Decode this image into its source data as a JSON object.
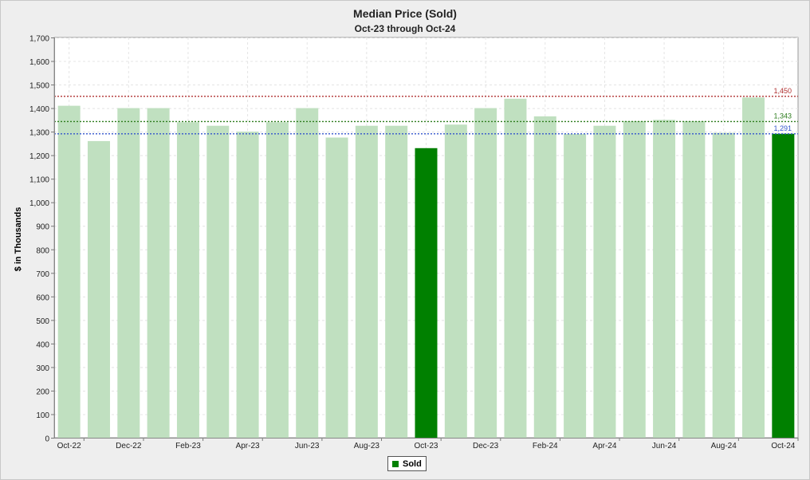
{
  "chart_data": {
    "type": "bar",
    "title": "Median Price (Sold)",
    "subtitle": "Oct-23 through Oct-24",
    "xlabel": "",
    "ylabel": "$ in Thousands",
    "ylim": [
      0,
      1700
    ],
    "y_ticks": [
      0,
      100,
      200,
      300,
      400,
      500,
      600,
      700,
      800,
      900,
      1000,
      1100,
      1200,
      1300,
      1400,
      1500,
      1600,
      1700
    ],
    "y_tick_labels": [
      "0",
      "100",
      "200",
      "300",
      "400",
      "500",
      "600",
      "700",
      "800",
      "900",
      "1,000",
      "1,100",
      "1,200",
      "1,300",
      "1,400",
      "1,500",
      "1,600",
      "1,700"
    ],
    "categories": [
      "Oct-22",
      "Nov-22",
      "Dec-22",
      "Jan-23",
      "Feb-23",
      "Mar-23",
      "Apr-23",
      "May-23",
      "Jun-23",
      "Jul-23",
      "Aug-23",
      "Sep-23",
      "Oct-23",
      "Nov-23",
      "Dec-23",
      "Jan-24",
      "Feb-24",
      "Mar-24",
      "Apr-24",
      "May-24",
      "Jun-24",
      "Jul-24",
      "Aug-24",
      "Sep-24",
      "Oct-24"
    ],
    "x_tick_labels": [
      "Oct-22",
      "",
      "Dec-22",
      "",
      "Feb-23",
      "",
      "Apr-23",
      "",
      "Jun-23",
      "",
      "Aug-23",
      "",
      "Oct-23",
      "",
      "Dec-23",
      "",
      "Feb-24",
      "",
      "Apr-24",
      "",
      "Jun-24",
      "",
      "Aug-24",
      "",
      "Oct-24"
    ],
    "values": [
      1410,
      1260,
      1400,
      1400,
      1340,
      1325,
      1300,
      1340,
      1400,
      1275,
      1325,
      1325,
      1230,
      1330,
      1400,
      1440,
      1365,
      1290,
      1325,
      1345,
      1350,
      1345,
      1295,
      1445,
      1291
    ],
    "highlighted": [
      false,
      false,
      false,
      false,
      false,
      false,
      false,
      false,
      false,
      false,
      false,
      false,
      true,
      false,
      false,
      false,
      false,
      false,
      false,
      false,
      false,
      false,
      false,
      false,
      true
    ],
    "reference_lines": [
      {
        "value": 1450,
        "label": "1,450",
        "color": "#b03030"
      },
      {
        "value": 1343,
        "label": "1,343",
        "color": "#2e7d1e"
      },
      {
        "value": 1291,
        "label": "1,291",
        "color": "#3355cc"
      }
    ],
    "colors": {
      "bar": "#c0e0c0",
      "highlight": "#008000",
      "grid": "#e4e4e4",
      "plot_bg": "#ffffff"
    },
    "grid": true,
    "legend": {
      "position": "bottom-center",
      "label": "Sold",
      "color": "#008000"
    }
  }
}
